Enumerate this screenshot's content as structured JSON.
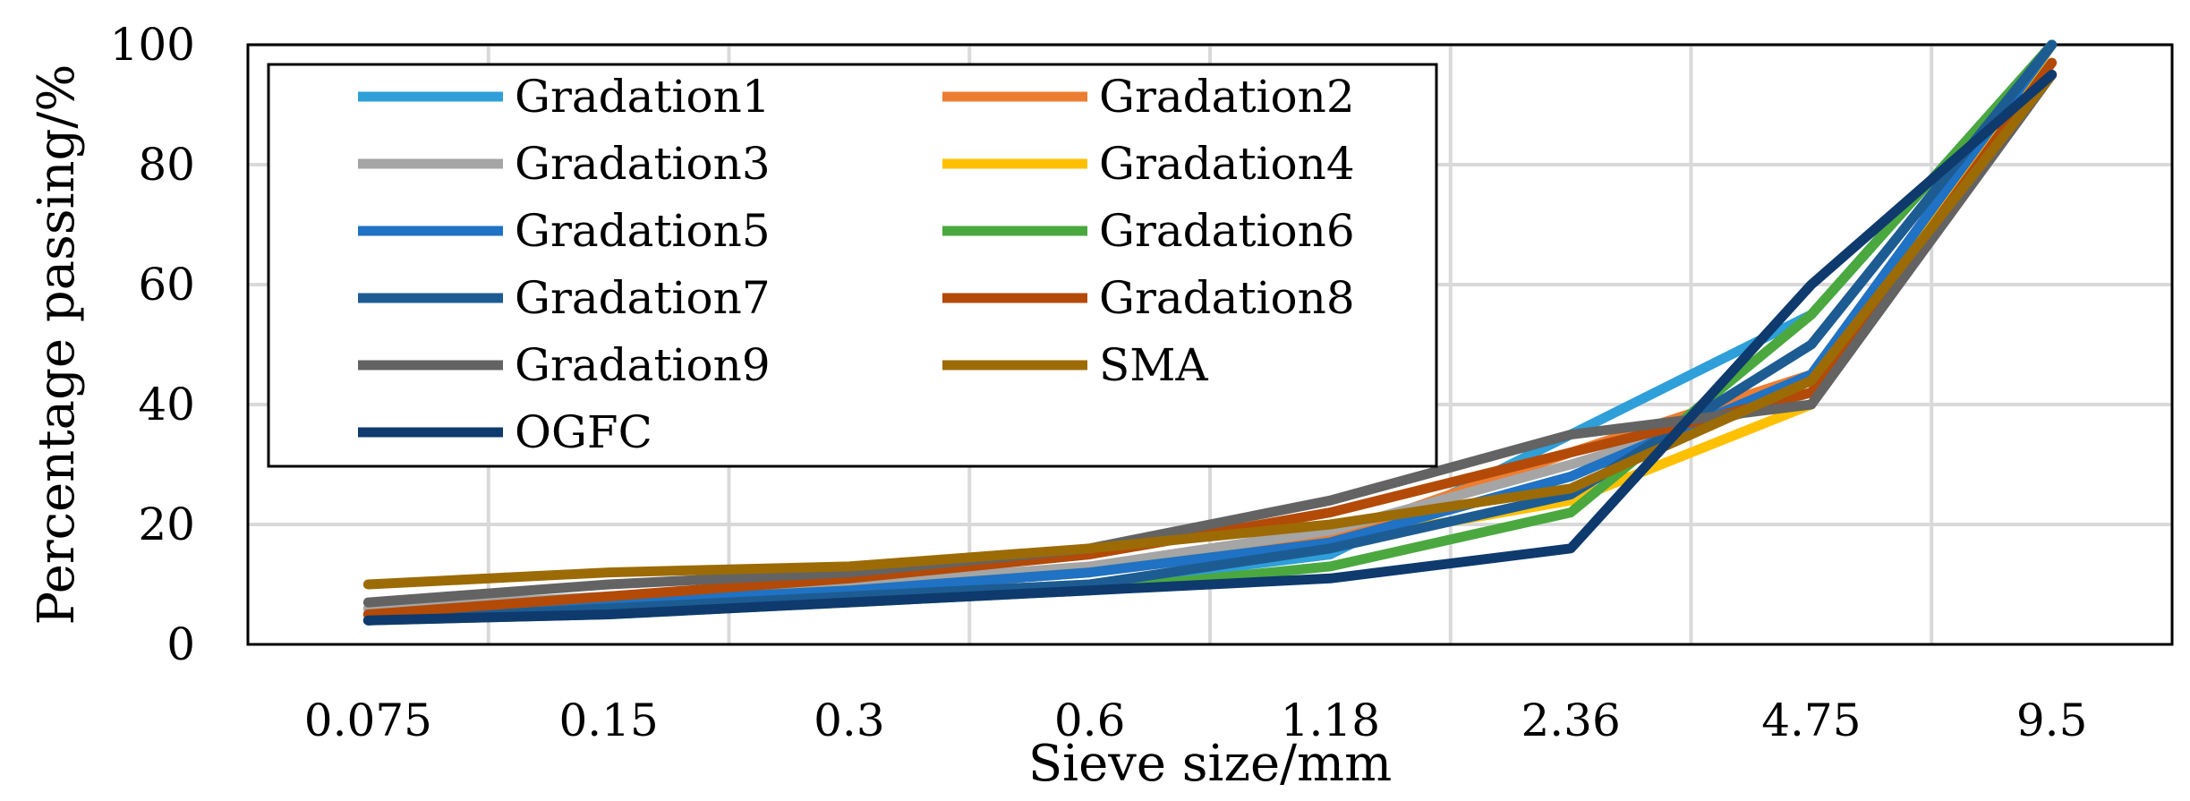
{
  "chart_data": {
    "type": "line",
    "title": "",
    "xlabel": "Sieve size/mm",
    "ylabel": "Percentage passing/%",
    "categories": [
      "0.075",
      "0.15",
      "0.3",
      "0.6",
      "1.18",
      "2.36",
      "4.75",
      "9.5"
    ],
    "ylim": [
      0,
      100
    ],
    "yticks": [
      0,
      20,
      40,
      60,
      80,
      100
    ],
    "grid": true,
    "legend_position": "top-left",
    "series": [
      {
        "name": "Gradation1",
        "color": "#2e9fd9",
        "values": [
          4,
          6,
          8,
          10,
          15,
          35,
          55,
          100
        ]
      },
      {
        "name": "Gradation2",
        "color": "#ed7d31",
        "values": [
          5,
          7,
          9,
          12,
          18,
          32,
          45,
          100
        ]
      },
      {
        "name": "Gradation3",
        "color": "#a5a5a5",
        "values": [
          6,
          8,
          10,
          13,
          19,
          30,
          42,
          100
        ]
      },
      {
        "name": "Gradation4",
        "color": "#ffc000",
        "values": [
          5,
          7,
          9,
          12,
          17,
          24,
          40,
          100
        ]
      },
      {
        "name": "Gradation5",
        "color": "#1f72c4",
        "values": [
          5,
          7,
          9,
          12,
          17,
          28,
          45,
          100
        ]
      },
      {
        "name": "Gradation6",
        "color": "#4aa83f",
        "values": [
          4,
          5,
          7,
          9,
          13,
          22,
          55,
          100
        ]
      },
      {
        "name": "Gradation7",
        "color": "#1d5c92",
        "values": [
          4,
          6,
          8,
          10,
          16,
          25,
          50,
          100
        ]
      },
      {
        "name": "Gradation8",
        "color": "#b34a07",
        "values": [
          5,
          8,
          11,
          15,
          22,
          32,
          42,
          97
        ]
      },
      {
        "name": "Gradation9",
        "color": "#636363",
        "values": [
          7,
          10,
          12,
          16,
          24,
          35,
          40,
          95
        ]
      },
      {
        "name": "SMA",
        "color": "#9c6b05",
        "values": [
          10,
          12,
          13,
          16,
          20,
          26,
          44,
          95
        ]
      },
      {
        "name": "OGFC",
        "color": "#0e3a6e",
        "values": [
          4,
          5,
          7,
          9,
          11,
          16,
          60,
          95
        ]
      }
    ]
  }
}
